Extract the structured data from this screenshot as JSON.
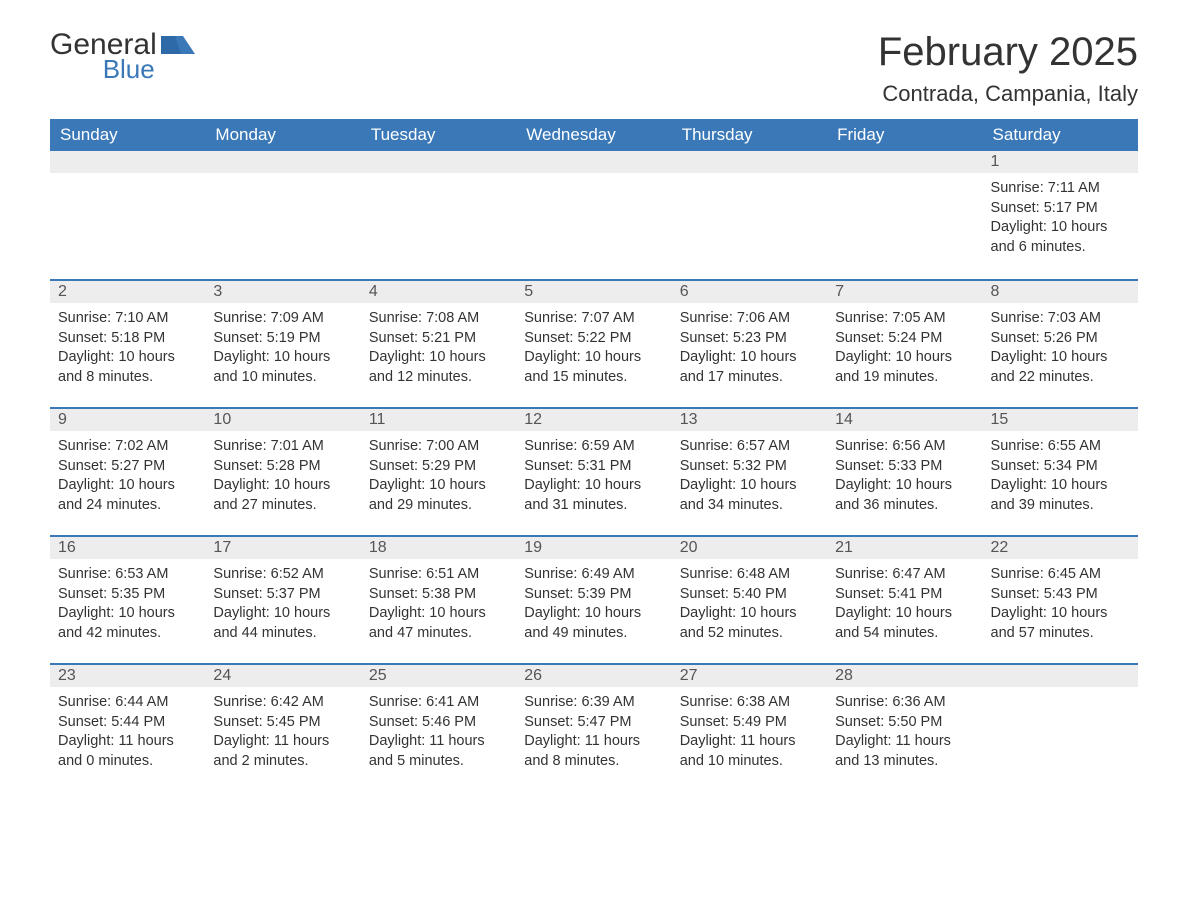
{
  "logo": {
    "text_a": "General",
    "text_b": "Blue",
    "color_a": "#333333",
    "color_b": "#3a78b8"
  },
  "title": "February 2025",
  "location": "Contrada, Campania, Italy",
  "header_bg": "#3a78b8",
  "daynum_bg": "#ededed",
  "row_border_color": "#3a78b8",
  "text_color": "#333333",
  "font_family": "Arial, Helvetica, sans-serif",
  "days_of_week": [
    "Sunday",
    "Monday",
    "Tuesday",
    "Wednesday",
    "Thursday",
    "Friday",
    "Saturday"
  ],
  "weeks": [
    [
      null,
      null,
      null,
      null,
      null,
      null,
      {
        "n": "1",
        "sr": "7:11 AM",
        "ss": "5:17 PM",
        "dl": "10 hours and 6 minutes."
      }
    ],
    [
      {
        "n": "2",
        "sr": "7:10 AM",
        "ss": "5:18 PM",
        "dl": "10 hours and 8 minutes."
      },
      {
        "n": "3",
        "sr": "7:09 AM",
        "ss": "5:19 PM",
        "dl": "10 hours and 10 minutes."
      },
      {
        "n": "4",
        "sr": "7:08 AM",
        "ss": "5:21 PM",
        "dl": "10 hours and 12 minutes."
      },
      {
        "n": "5",
        "sr": "7:07 AM",
        "ss": "5:22 PM",
        "dl": "10 hours and 15 minutes."
      },
      {
        "n": "6",
        "sr": "7:06 AM",
        "ss": "5:23 PM",
        "dl": "10 hours and 17 minutes."
      },
      {
        "n": "7",
        "sr": "7:05 AM",
        "ss": "5:24 PM",
        "dl": "10 hours and 19 minutes."
      },
      {
        "n": "8",
        "sr": "7:03 AM",
        "ss": "5:26 PM",
        "dl": "10 hours and 22 minutes."
      }
    ],
    [
      {
        "n": "9",
        "sr": "7:02 AM",
        "ss": "5:27 PM",
        "dl": "10 hours and 24 minutes."
      },
      {
        "n": "10",
        "sr": "7:01 AM",
        "ss": "5:28 PM",
        "dl": "10 hours and 27 minutes."
      },
      {
        "n": "11",
        "sr": "7:00 AM",
        "ss": "5:29 PM",
        "dl": "10 hours and 29 minutes."
      },
      {
        "n": "12",
        "sr": "6:59 AM",
        "ss": "5:31 PM",
        "dl": "10 hours and 31 minutes."
      },
      {
        "n": "13",
        "sr": "6:57 AM",
        "ss": "5:32 PM",
        "dl": "10 hours and 34 minutes."
      },
      {
        "n": "14",
        "sr": "6:56 AM",
        "ss": "5:33 PM",
        "dl": "10 hours and 36 minutes."
      },
      {
        "n": "15",
        "sr": "6:55 AM",
        "ss": "5:34 PM",
        "dl": "10 hours and 39 minutes."
      }
    ],
    [
      {
        "n": "16",
        "sr": "6:53 AM",
        "ss": "5:35 PM",
        "dl": "10 hours and 42 minutes."
      },
      {
        "n": "17",
        "sr": "6:52 AM",
        "ss": "5:37 PM",
        "dl": "10 hours and 44 minutes."
      },
      {
        "n": "18",
        "sr": "6:51 AM",
        "ss": "5:38 PM",
        "dl": "10 hours and 47 minutes."
      },
      {
        "n": "19",
        "sr": "6:49 AM",
        "ss": "5:39 PM",
        "dl": "10 hours and 49 minutes."
      },
      {
        "n": "20",
        "sr": "6:48 AM",
        "ss": "5:40 PM",
        "dl": "10 hours and 52 minutes."
      },
      {
        "n": "21",
        "sr": "6:47 AM",
        "ss": "5:41 PM",
        "dl": "10 hours and 54 minutes."
      },
      {
        "n": "22",
        "sr": "6:45 AM",
        "ss": "5:43 PM",
        "dl": "10 hours and 57 minutes."
      }
    ],
    [
      {
        "n": "23",
        "sr": "6:44 AM",
        "ss": "5:44 PM",
        "dl": "11 hours and 0 minutes."
      },
      {
        "n": "24",
        "sr": "6:42 AM",
        "ss": "5:45 PM",
        "dl": "11 hours and 2 minutes."
      },
      {
        "n": "25",
        "sr": "6:41 AM",
        "ss": "5:46 PM",
        "dl": "11 hours and 5 minutes."
      },
      {
        "n": "26",
        "sr": "6:39 AM",
        "ss": "5:47 PM",
        "dl": "11 hours and 8 minutes."
      },
      {
        "n": "27",
        "sr": "6:38 AM",
        "ss": "5:49 PM",
        "dl": "11 hours and 10 minutes."
      },
      {
        "n": "28",
        "sr": "6:36 AM",
        "ss": "5:50 PM",
        "dl": "11 hours and 13 minutes."
      },
      null
    ]
  ],
  "labels": {
    "sunrise": "Sunrise: ",
    "sunset": "Sunset: ",
    "daylight": "Daylight: "
  }
}
